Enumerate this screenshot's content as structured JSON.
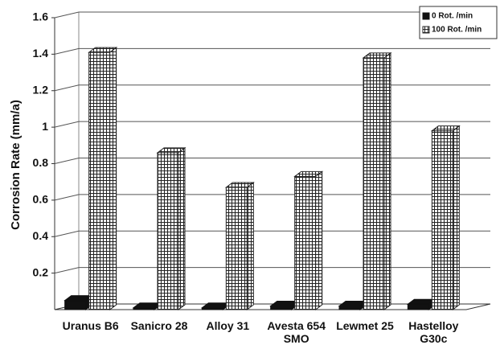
{
  "chart_data": {
    "type": "bar3d",
    "y_label": "Corrosion Rate (mm/a)",
    "categories": [
      "Uranus B6",
      "Sanicro 28",
      "Alloy 31",
      "Avesta 654 SMO",
      "Lewmet 25",
      "Hastelloy G30c"
    ],
    "series": [
      {
        "name": "0 Rot. /min",
        "color": "#111111",
        "pattern": "solid",
        "values": [
          0.05,
          0.01,
          0.01,
          0.02,
          0.02,
          0.03
        ]
      },
      {
        "name": "100 Rot. /min",
        "color": "#222222",
        "pattern": "grid",
        "values": [
          1.41,
          0.86,
          0.67,
          0.73,
          1.38,
          0.98
        ]
      }
    ],
    "ylim": [
      0,
      1.6
    ],
    "yticks": [
      0.2,
      0.4,
      0.6,
      0.8,
      1,
      1.2,
      1.4,
      1.6
    ],
    "grid": true,
    "legend": "top-right"
  }
}
